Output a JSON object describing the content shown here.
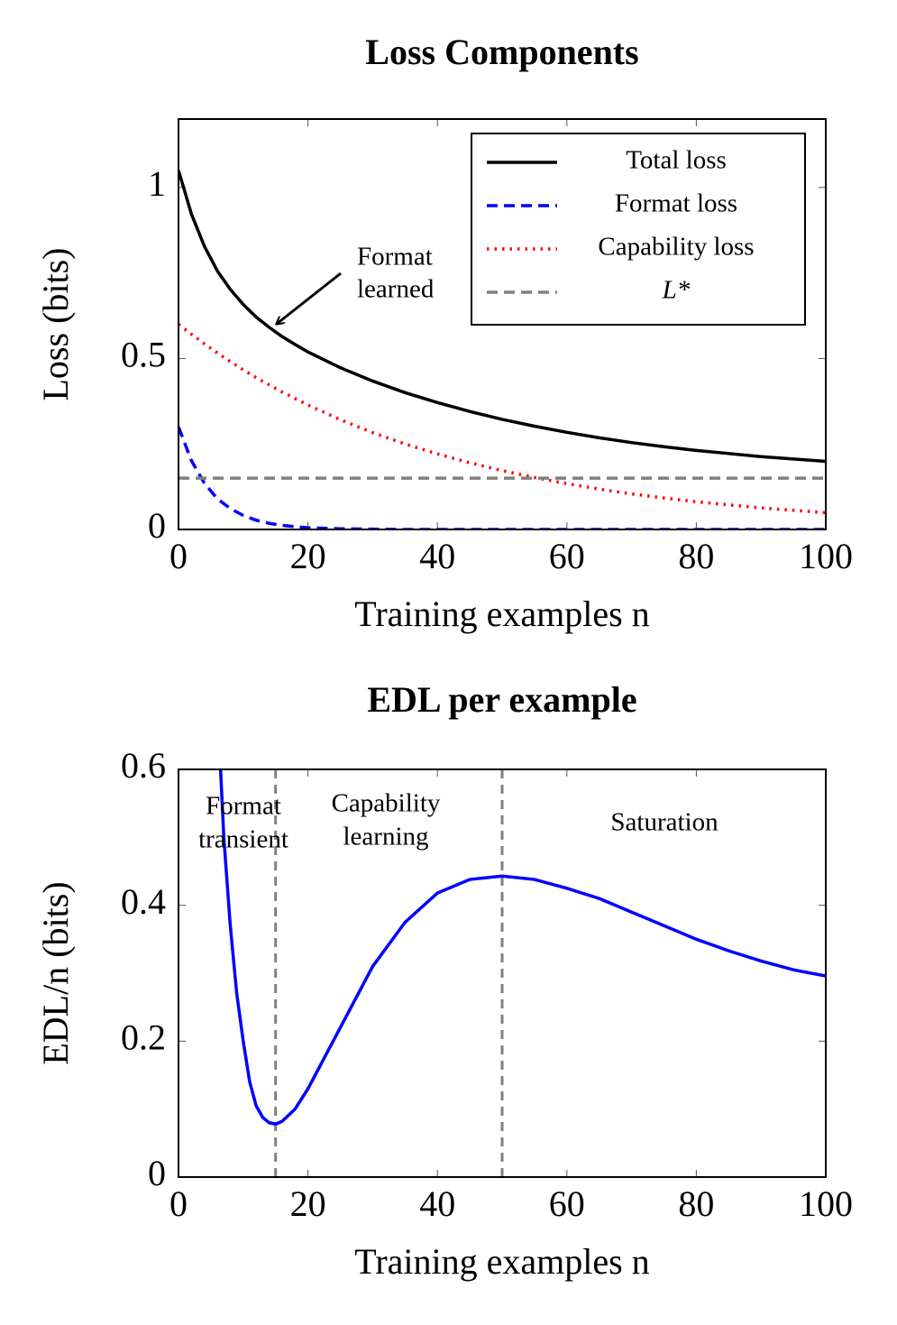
{
  "chart_data": [
    {
      "type": "line",
      "title": "Loss Components",
      "xlabel": "Training examples n",
      "ylabel": "Loss (bits)",
      "xlim": [
        0,
        100
      ],
      "ylim": [
        0,
        1.2
      ],
      "xticks": [
        0,
        20,
        40,
        60,
        80,
        100
      ],
      "yticks": [
        0,
        0.5,
        1
      ],
      "legend": "upper right",
      "x": [
        0,
        2,
        4,
        6,
        8,
        10,
        12,
        14,
        16,
        18,
        20,
        25,
        30,
        35,
        40,
        45,
        50,
        55,
        60,
        65,
        70,
        75,
        80,
        85,
        90,
        95,
        100
      ],
      "series": [
        {
          "name": "Total loss",
          "color": "#000000",
          "dash": "solid",
          "values": [
            1.05,
            0.922,
            0.828,
            0.756,
            0.702,
            0.658,
            0.621,
            0.591,
            0.564,
            0.541,
            0.519,
            0.473,
            0.434,
            0.4,
            0.371,
            0.345,
            0.322,
            0.302,
            0.284,
            0.268,
            0.254,
            0.242,
            0.231,
            0.222,
            0.213,
            0.206,
            0.199
          ]
        },
        {
          "name": "Format loss",
          "color": "#0000ff",
          "dash": "dashed",
          "values": [
            0.3,
            0.201,
            0.135,
            0.09,
            0.061,
            0.041,
            0.027,
            0.018,
            0.012,
            0.008,
            0.005,
            0.002,
            0.001,
            0,
            0,
            0,
            0,
            0,
            0,
            0,
            0,
            0,
            0,
            0,
            0,
            0,
            0
          ]
        },
        {
          "name": "Capability loss",
          "color": "#ff0000",
          "dash": "dotted",
          "values": [
            0.6,
            0.571,
            0.543,
            0.516,
            0.491,
            0.467,
            0.444,
            0.423,
            0.402,
            0.383,
            0.364,
            0.321,
            0.283,
            0.25,
            0.221,
            0.195,
            0.172,
            0.152,
            0.134,
            0.118,
            0.104,
            0.092,
            0.081,
            0.072,
            0.063,
            0.056,
            0.049
          ]
        },
        {
          "name": "L*",
          "color": "#808080",
          "dash": "dashed",
          "values": [
            0.15,
            0.15,
            0.15,
            0.15,
            0.15,
            0.15,
            0.15,
            0.15,
            0.15,
            0.15,
            0.15,
            0.15,
            0.15,
            0.15,
            0.15,
            0.15,
            0.15,
            0.15,
            0.15,
            0.15,
            0.15,
            0.15,
            0.15,
            0.15,
            0.15,
            0.15,
            0.15
          ]
        }
      ],
      "annotations": [
        {
          "lines": [
            "Format",
            "learned"
          ]
        }
      ]
    },
    {
      "type": "line",
      "title": "EDL per example",
      "xlabel": "Training examples n",
      "ylabel": "EDL/n (bits)",
      "xlim": [
        0,
        100
      ],
      "ylim": [
        0,
        0.6
      ],
      "xticks": [
        0,
        20,
        40,
        60,
        80,
        100
      ],
      "yticks": [
        0,
        0.2,
        0.4,
        0.6
      ],
      "x": [
        6.5,
        7,
        8,
        9,
        10,
        11,
        12,
        13,
        14,
        15,
        16,
        18,
        20,
        25,
        30,
        35,
        40,
        45,
        50,
        55,
        60,
        65,
        70,
        75,
        80,
        85,
        90,
        95,
        100
      ],
      "series": [
        {
          "color": "#0000ff",
          "dash": "solid",
          "values": [
            0.6,
            0.5,
            0.37,
            0.27,
            0.2,
            0.14,
            0.105,
            0.088,
            0.08,
            0.078,
            0.082,
            0.1,
            0.13,
            0.22,
            0.31,
            0.375,
            0.418,
            0.438,
            0.443,
            0.438,
            0.425,
            0.41,
            0.39,
            0.37,
            0.35,
            0.333,
            0.318,
            0.305,
            0.296
          ]
        }
      ],
      "vlines": [
        15,
        50
      ],
      "annotations": [
        {
          "lines": [
            "Format",
            "transient"
          ]
        },
        {
          "lines": [
            "Capability",
            "learning"
          ]
        },
        {
          "lines": [
            "Saturation"
          ]
        }
      ]
    }
  ]
}
